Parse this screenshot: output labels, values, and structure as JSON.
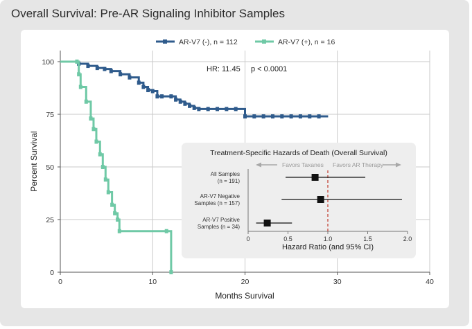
{
  "title": "Overall Survival: Pre-AR Signaling Inhibitor Samples",
  "colors": {
    "neg": "#2f5b8c",
    "pos": "#6fc9a6",
    "inset_bg": "#eeeeee",
    "ref": "#c0392b",
    "grid": "#c9c9c9"
  },
  "chart_data": [
    {
      "type": "line",
      "step": true,
      "title": "Overall Survival: Pre-AR Signaling Inhibitor Samples",
      "xlabel": "Months Survival",
      "ylabel": "Percent Survival",
      "xlim": [
        0,
        40
      ],
      "ylim": [
        0,
        100
      ],
      "xticks": [
        "0",
        "10",
        "20",
        "30",
        "40"
      ],
      "yticks": [
        "0",
        "25",
        "50",
        "75",
        "100"
      ],
      "grid": true,
      "legend_position": "top",
      "series": [
        {
          "name": "AR-V7 (-), n = 112",
          "x": [
            0,
            2,
            3,
            4,
            4.8,
            5.5,
            6.5,
            7.5,
            8.5,
            9,
            9.5,
            10,
            10.5,
            11,
            12,
            12.5,
            13,
            13.5,
            14,
            14.5,
            15,
            16,
            17,
            18,
            19,
            20,
            21,
            22,
            23,
            24,
            25,
            26,
            27,
            28,
            29
          ],
          "y": [
            100,
            99,
            98,
            97,
            96.5,
            95.5,
            94,
            92.5,
            90,
            88,
            86.5,
            86,
            83.5,
            83.5,
            83.5,
            82,
            81,
            80,
            79,
            78,
            77.5,
            77.5,
            77.5,
            77.5,
            77.5,
            74,
            74,
            74,
            74,
            74,
            74,
            74,
            74,
            74,
            74
          ]
        },
        {
          "name": "AR-V7 (+), n = 16",
          "x": [
            0,
            1.8,
            2,
            2.2,
            2.8,
            3.3,
            3.6,
            3.9,
            4.3,
            4.6,
            4.9,
            5.2,
            5.6,
            5.9,
            6.2,
            6.4,
            11.5,
            12,
            12.1
          ],
          "y": [
            100,
            100,
            94,
            88,
            81,
            73,
            68,
            62,
            56,
            50,
            44,
            38,
            32,
            28,
            25,
            19.5,
            19.5,
            0,
            0
          ]
        }
      ],
      "annotations": {
        "hr": "HR: 11.45",
        "p": "p < 0.0001"
      }
    },
    {
      "type": "forest",
      "title": "Treatment-Specific Hazards of Death (Overall Survival)",
      "favors_left": "Favors Taxanes",
      "favors_right": "Favors AR Therapy",
      "xlabel": "Hazard Ratio (and 95% CI)",
      "xlim": [
        0,
        2.0
      ],
      "xticks": [
        "0",
        "0.5",
        "1.0",
        "1.5",
        "2.0"
      ],
      "reference_line": 1.0,
      "rows": [
        {
          "label_line1": "All Samples",
          "label_line2": "(n = 191)",
          "estimate": 0.84,
          "ci_low": 0.47,
          "ci_high": 1.47
        },
        {
          "label_line1": "AR-V7 Negative",
          "label_line2": "Samples (n = 157)",
          "estimate": 0.91,
          "ci_low": 0.42,
          "ci_high": 1.93
        },
        {
          "label_line1": "AR-V7 Positive",
          "label_line2": "Samples (n = 34)",
          "estimate": 0.24,
          "ci_low": 0.1,
          "ci_high": 0.55
        }
      ]
    }
  ]
}
